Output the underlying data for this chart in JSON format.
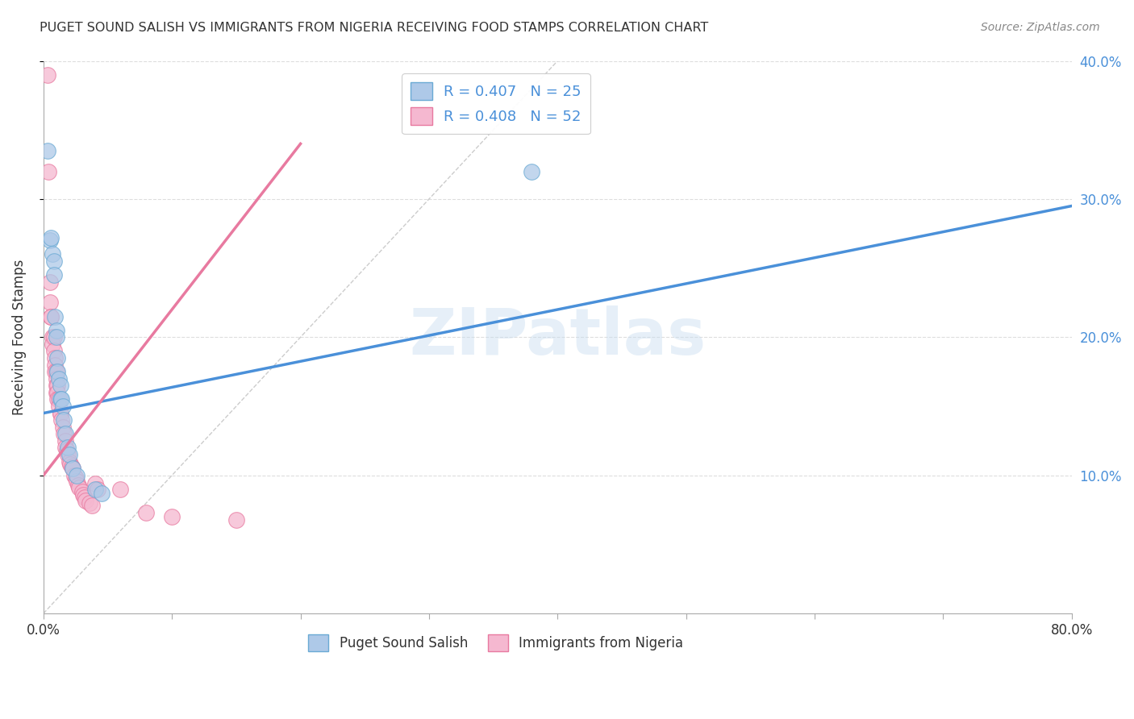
{
  "title": "PUGET SOUND SALISH VS IMMIGRANTS FROM NIGERIA RECEIVING FOOD STAMPS CORRELATION CHART",
  "source": "Source: ZipAtlas.com",
  "ylabel": "Receiving Food Stamps",
  "xlim": [
    0,
    0.8
  ],
  "ylim": [
    0,
    0.4
  ],
  "xticks": [
    0.0,
    0.1,
    0.2,
    0.3,
    0.4,
    0.5,
    0.6,
    0.7,
    0.8
  ],
  "xticklabels": [
    "0.0%",
    "",
    "",
    "",
    "",
    "",
    "",
    "",
    "80.0%"
  ],
  "yticks_right": [
    0.1,
    0.2,
    0.3,
    0.4
  ],
  "ytick_labels_right": [
    "10.0%",
    "20.0%",
    "30.0%",
    "40.0%"
  ],
  "legend_blue_R": "0.407",
  "legend_blue_N": "25",
  "legend_pink_R": "0.408",
  "legend_pink_N": "52",
  "watermark": "ZIPatlas",
  "blue_color": "#aec9e8",
  "pink_color": "#f5b8d0",
  "blue_edge_color": "#6aaad4",
  "pink_edge_color": "#e87aa0",
  "blue_line_color": "#4a90d9",
  "pink_line_color": "#e87aa0",
  "blue_scatter": [
    [
      0.003,
      0.335
    ],
    [
      0.005,
      0.27
    ],
    [
      0.006,
      0.272
    ],
    [
      0.007,
      0.26
    ],
    [
      0.008,
      0.255
    ],
    [
      0.008,
      0.245
    ],
    [
      0.009,
      0.215
    ],
    [
      0.01,
      0.205
    ],
    [
      0.01,
      0.2
    ],
    [
      0.011,
      0.185
    ],
    [
      0.011,
      0.175
    ],
    [
      0.012,
      0.17
    ],
    [
      0.013,
      0.165
    ],
    [
      0.013,
      0.155
    ],
    [
      0.014,
      0.155
    ],
    [
      0.015,
      0.15
    ],
    [
      0.016,
      0.14
    ],
    [
      0.017,
      0.13
    ],
    [
      0.019,
      0.12
    ],
    [
      0.02,
      0.115
    ],
    [
      0.023,
      0.105
    ],
    [
      0.026,
      0.1
    ],
    [
      0.04,
      0.09
    ],
    [
      0.045,
      0.087
    ],
    [
      0.38,
      0.32
    ]
  ],
  "pink_scatter": [
    [
      0.003,
      0.39
    ],
    [
      0.004,
      0.32
    ],
    [
      0.005,
      0.24
    ],
    [
      0.005,
      0.225
    ],
    [
      0.006,
      0.215
    ],
    [
      0.006,
      0.215
    ],
    [
      0.007,
      0.2
    ],
    [
      0.007,
      0.195
    ],
    [
      0.008,
      0.2
    ],
    [
      0.008,
      0.19
    ],
    [
      0.009,
      0.185
    ],
    [
      0.009,
      0.18
    ],
    [
      0.009,
      0.175
    ],
    [
      0.01,
      0.175
    ],
    [
      0.01,
      0.17
    ],
    [
      0.01,
      0.165
    ],
    [
      0.01,
      0.16
    ],
    [
      0.011,
      0.165
    ],
    [
      0.011,
      0.16
    ],
    [
      0.011,
      0.155
    ],
    [
      0.012,
      0.155
    ],
    [
      0.012,
      0.15
    ],
    [
      0.013,
      0.145
    ],
    [
      0.013,
      0.145
    ],
    [
      0.014,
      0.14
    ],
    [
      0.015,
      0.135
    ],
    [
      0.016,
      0.13
    ],
    [
      0.017,
      0.125
    ],
    [
      0.017,
      0.12
    ],
    [
      0.018,
      0.118
    ],
    [
      0.019,
      0.115
    ],
    [
      0.02,
      0.11
    ],
    [
      0.021,
      0.108
    ],
    [
      0.022,
      0.106
    ],
    [
      0.023,
      0.105
    ],
    [
      0.024,
      0.1
    ],
    [
      0.025,
      0.098
    ],
    [
      0.026,
      0.096
    ],
    [
      0.027,
      0.093
    ],
    [
      0.028,
      0.091
    ],
    [
      0.03,
      0.088
    ],
    [
      0.031,
      0.086
    ],
    [
      0.032,
      0.084
    ],
    [
      0.033,
      0.082
    ],
    [
      0.036,
      0.08
    ],
    [
      0.038,
      0.078
    ],
    [
      0.04,
      0.094
    ],
    [
      0.042,
      0.09
    ],
    [
      0.06,
      0.09
    ],
    [
      0.08,
      0.073
    ],
    [
      0.1,
      0.07
    ],
    [
      0.15,
      0.068
    ]
  ],
  "blue_trend_x": [
    0.0,
    0.8
  ],
  "blue_trend_y": [
    0.145,
    0.295
  ],
  "pink_trend_x": [
    0.0,
    0.2
  ],
  "pink_trend_y": [
    0.1,
    0.34
  ],
  "ref_line_x": [
    0.0,
    0.4
  ],
  "ref_line_y": [
    0.0,
    0.4
  ],
  "background_color": "#ffffff",
  "grid_color": "#dddddd"
}
